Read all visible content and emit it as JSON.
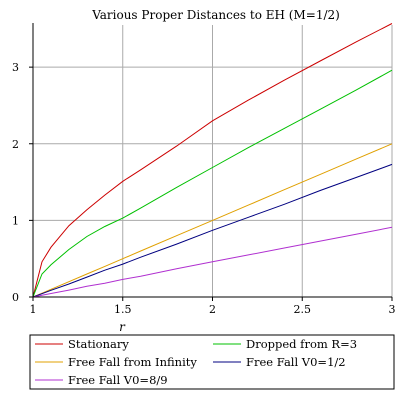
{
  "chart_data": {
    "type": "line",
    "title": "Various Proper Distances to EH (M=1/2)",
    "xlabel": "r",
    "ylabel": "",
    "xlim": [
      1,
      3
    ],
    "ylim": [
      0,
      3.55
    ],
    "xticks": [
      1,
      1.5,
      2,
      2.5,
      3
    ],
    "xtick_labels": [
      "1",
      "1.5",
      "2",
      "2.5",
      "3"
    ],
    "yticks": [
      0,
      1,
      2,
      3
    ],
    "ytick_labels": [
      "0",
      "1",
      "2",
      "3"
    ],
    "grid": true,
    "legend_position": "bottom",
    "x": [
      1,
      1.05,
      1.1,
      1.2,
      1.3,
      1.4,
      1.5,
      1.6,
      1.8,
      2.0,
      2.2,
      2.4,
      2.6,
      2.8,
      3.0
    ],
    "series": [
      {
        "name": "Stationary",
        "color": "#cc0000",
        "values": [
          0,
          0.46,
          0.65,
          0.93,
          1.14,
          1.33,
          1.51,
          1.66,
          1.97,
          2.3,
          2.57,
          2.83,
          3.08,
          3.33,
          3.57
        ]
      },
      {
        "name": "Dropped from R=3",
        "color": "#00c000",
        "values": [
          0,
          0.3,
          0.42,
          0.62,
          0.79,
          0.92,
          1.03,
          1.16,
          1.43,
          1.69,
          1.95,
          2.2,
          2.45,
          2.7,
          2.96
        ]
      },
      {
        "name": "Free Fall from Infinity",
        "color": "#e0a000",
        "values": [
          0,
          0.05,
          0.1,
          0.2,
          0.3,
          0.4,
          0.5,
          0.6,
          0.8,
          1.0,
          1.2,
          1.4,
          1.6,
          1.8,
          2.0
        ]
      },
      {
        "name": "Free Fall V0=1/2",
        "color": "#000080",
        "values": [
          0,
          0.043,
          0.087,
          0.17,
          0.26,
          0.35,
          0.43,
          0.52,
          0.69,
          0.87,
          1.04,
          1.21,
          1.39,
          1.56,
          1.73
        ]
      },
      {
        "name": "Free Fall V0=8/9",
        "color": "#b030d0",
        "values": [
          0,
          0.023,
          0.046,
          0.09,
          0.14,
          0.18,
          0.23,
          0.27,
          0.37,
          0.46,
          0.55,
          0.64,
          0.73,
          0.82,
          0.91
        ]
      }
    ]
  }
}
